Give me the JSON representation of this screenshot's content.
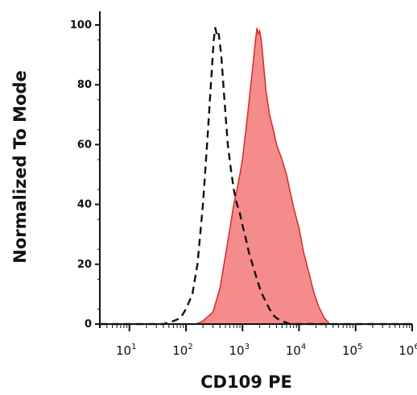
{
  "chart_data": {
    "type": "area",
    "title": "",
    "xlabel": "CD109 PE",
    "ylabel": "Normalized To Mode",
    "xscale": "log",
    "xlim": [
      3,
      1000000
    ],
    "ylim": [
      0,
      100
    ],
    "yticks": [
      0,
      20,
      40,
      60,
      80,
      100
    ],
    "xticks": [
      {
        "value": 10,
        "base": "10",
        "exp": "1"
      },
      {
        "value": 100,
        "base": "10",
        "exp": "2"
      },
      {
        "value": 1000,
        "base": "10",
        "exp": "3"
      },
      {
        "value": 10000,
        "base": "10",
        "exp": "4"
      },
      {
        "value": 100000,
        "base": "10",
        "exp": "5"
      },
      {
        "value": 1000000,
        "base": "10",
        "exp": "6"
      }
    ],
    "grid": false,
    "series": [
      {
        "style": "dashed",
        "color": "#111111",
        "x": [
          3,
          40,
          60,
          80,
          100,
          130,
          160,
          200,
          240,
          280,
          310,
          330,
          360,
          380,
          420,
          480,
          550,
          620,
          700,
          800,
          900,
          1000,
          1100,
          1300,
          1500,
          1800,
          2100,
          2500,
          3000,
          3500,
          4000,
          5000,
          7000,
          1000000
        ],
        "y": [
          0,
          0,
          1,
          2,
          5,
          10,
          20,
          40,
          62,
          82,
          95,
          99,
          96,
          97,
          90,
          75,
          60,
          52,
          45,
          40,
          37,
          33,
          30,
          24,
          20,
          15,
          11,
          8,
          5,
          3,
          2,
          1,
          0,
          0
        ]
      },
      {
        "style": "filled",
        "color": "#f58c8c",
        "edge": "#d9302c",
        "x": [
          3,
          150,
          200,
          300,
          400,
          500,
          600,
          700,
          800,
          900,
          1000,
          1200,
          1500,
          1700,
          1800,
          1900,
          2000,
          2100,
          2200,
          2400,
          2600,
          3000,
          3500,
          4000,
          5000,
          6000,
          7000,
          8000,
          10000,
          12000,
          15000,
          18000,
          22000,
          28000,
          35000,
          1000000
        ],
        "y": [
          0,
          0,
          1,
          4,
          12,
          23,
          32,
          40,
          45,
          50,
          55,
          68,
          85,
          95,
          99,
          97,
          98,
          96,
          93,
          85,
          78,
          70,
          65,
          60,
          55,
          50,
          44,
          39,
          32,
          24,
          17,
          11,
          6,
          2,
          0,
          0
        ]
      }
    ]
  }
}
